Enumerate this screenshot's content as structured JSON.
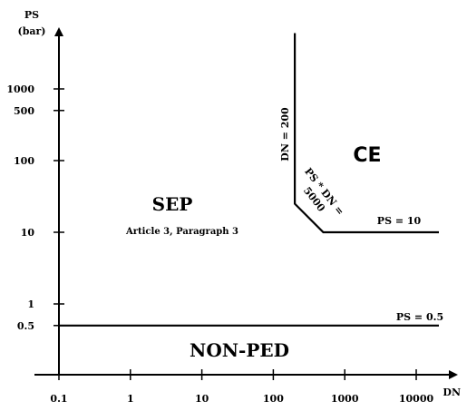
{
  "chart_data": {
    "type": "line",
    "xlabel": "DN",
    "ylabel": "PS",
    "ylabel_unit": "(bar)",
    "x_scale": "log",
    "y_scale": "log",
    "x_ticks": [
      {
        "value": 0.1,
        "label": "0.1"
      },
      {
        "value": 1,
        "label": "1"
      },
      {
        "value": 10,
        "label": "10"
      },
      {
        "value": 100,
        "label": "100"
      },
      {
        "value": 1000,
        "label": "1000"
      },
      {
        "value": 10000,
        "label": "10000"
      }
    ],
    "y_ticks": [
      {
        "value": 0.5,
        "label": "0.5"
      },
      {
        "value": 1,
        "label": "1"
      },
      {
        "value": 10,
        "label": "10"
      },
      {
        "value": 100,
        "label": "100"
      },
      {
        "value": 500,
        "label": "500"
      },
      {
        "value": 1000,
        "label": "1000"
      }
    ],
    "series": [
      {
        "id": "ps-half",
        "points": [
          [
            0.1,
            0.5
          ],
          [
            30000,
            0.5
          ]
        ]
      },
      {
        "id": "ce-boundary",
        "points": [
          [
            200,
            6000
          ],
          [
            200,
            25
          ],
          [
            500,
            10
          ],
          [
            30000,
            10
          ]
        ]
      }
    ],
    "annotations": {
      "ps_half": "PS = 0.5",
      "ps_ten": "PS = 10",
      "dn_200": "DN = 200",
      "ps_dn_line1": "PS * DN =",
      "ps_dn_line2": "5000"
    },
    "regions": {
      "sep": "SEP",
      "sep_sub": "Article 3, Paragraph 3",
      "non_ped": "NON-PED",
      "ce": "CE"
    }
  }
}
